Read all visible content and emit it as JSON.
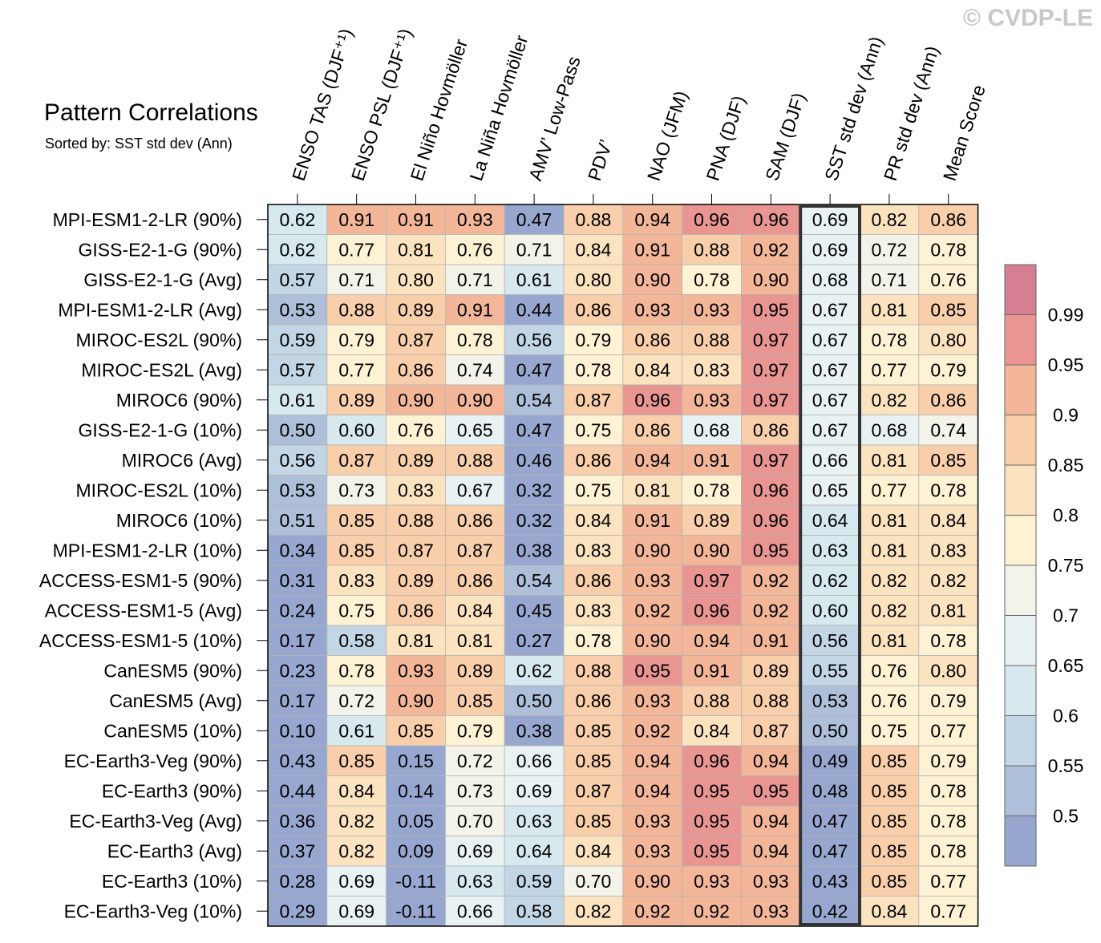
{
  "copyright": "© CVDP-LE",
  "chart_data": {
    "type": "heatmap",
    "title": "Pattern Correlations",
    "subtitle": "Sorted by: SST std dev (Ann)",
    "highlighted_column": "SST std dev (Ann)",
    "columns": [
      "ENSO TAS (DJF⁺¹)",
      "ENSO PSL (DJF⁺¹)",
      "El Niño Hovmöller",
      "La Niña Hovmöller",
      "AMV’ Low-Pass",
      "PDV’",
      "NAO (JFM)",
      "PNA (DJF)",
      "SAM (DJF)",
      "SST std dev (Ann)",
      "PR std dev (Ann)",
      "Mean Score"
    ],
    "rows": [
      "MPI-ESM1-2-LR (90%)",
      "GISS-E2-1-G (90%)",
      "GISS-E2-1-G (Avg)",
      "MPI-ESM1-2-LR (Avg)",
      "MIROC-ES2L (90%)",
      "MIROC-ES2L (Avg)",
      "MIROC6 (90%)",
      "GISS-E2-1-G (10%)",
      "MIROC6 (Avg)",
      "MIROC-ES2L (10%)",
      "MIROC6 (10%)",
      "MPI-ESM1-2-LR (10%)",
      "ACCESS-ESM1-5 (90%)",
      "ACCESS-ESM1-5 (Avg)",
      "ACCESS-ESM1-5 (10%)",
      "CanESM5 (90%)",
      "CanESM5 (Avg)",
      "CanESM5 (10%)",
      "EC-Earth3-Veg (90%)",
      "EC-Earth3 (90%)",
      "EC-Earth3-Veg (Avg)",
      "EC-Earth3 (Avg)",
      "EC-Earth3 (10%)",
      "EC-Earth3-Veg (10%)"
    ],
    "values": [
      [
        "0.62",
        "0.91",
        "0.91",
        "0.93",
        "0.47",
        "0.88",
        "0.94",
        "0.96",
        "0.96",
        "0.69",
        "0.82",
        "0.86"
      ],
      [
        "0.62",
        "0.77",
        "0.81",
        "0.76",
        "0.71",
        "0.84",
        "0.91",
        "0.88",
        "0.92",
        "0.69",
        "0.72",
        "0.78"
      ],
      [
        "0.57",
        "0.71",
        "0.80",
        "0.71",
        "0.61",
        "0.80",
        "0.90",
        "0.78",
        "0.90",
        "0.68",
        "0.71",
        "0.76"
      ],
      [
        "0.53",
        "0.88",
        "0.89",
        "0.91",
        "0.44",
        "0.86",
        "0.93",
        "0.93",
        "0.95",
        "0.67",
        "0.81",
        "0.85"
      ],
      [
        "0.59",
        "0.79",
        "0.87",
        "0.78",
        "0.56",
        "0.79",
        "0.86",
        "0.88",
        "0.97",
        "0.67",
        "0.78",
        "0.80"
      ],
      [
        "0.57",
        "0.77",
        "0.86",
        "0.74",
        "0.47",
        "0.78",
        "0.84",
        "0.83",
        "0.97",
        "0.67",
        "0.77",
        "0.79"
      ],
      [
        "0.61",
        "0.89",
        "0.90",
        "0.90",
        "0.54",
        "0.87",
        "0.96",
        "0.93",
        "0.97",
        "0.67",
        "0.82",
        "0.86"
      ],
      [
        "0.50",
        "0.60",
        "0.76",
        "0.65",
        "0.47",
        "0.75",
        "0.86",
        "0.68",
        "0.86",
        "0.67",
        "0.68",
        "0.74"
      ],
      [
        "0.56",
        "0.87",
        "0.89",
        "0.88",
        "0.46",
        "0.86",
        "0.94",
        "0.91",
        "0.97",
        "0.66",
        "0.81",
        "0.85"
      ],
      [
        "0.53",
        "0.73",
        "0.83",
        "0.67",
        "0.32",
        "0.75",
        "0.81",
        "0.78",
        "0.96",
        "0.65",
        "0.77",
        "0.78"
      ],
      [
        "0.51",
        "0.85",
        "0.88",
        "0.86",
        "0.32",
        "0.84",
        "0.91",
        "0.89",
        "0.96",
        "0.64",
        "0.81",
        "0.84"
      ],
      [
        "0.34",
        "0.85",
        "0.87",
        "0.87",
        "0.38",
        "0.83",
        "0.90",
        "0.90",
        "0.95",
        "0.63",
        "0.81",
        "0.83"
      ],
      [
        "0.31",
        "0.83",
        "0.89",
        "0.86",
        "0.54",
        "0.86",
        "0.93",
        "0.97",
        "0.92",
        "0.62",
        "0.82",
        "0.82"
      ],
      [
        "0.24",
        "0.75",
        "0.86",
        "0.84",
        "0.45",
        "0.83",
        "0.92",
        "0.96",
        "0.92",
        "0.60",
        "0.82",
        "0.81"
      ],
      [
        "0.17",
        "0.58",
        "0.81",
        "0.81",
        "0.27",
        "0.78",
        "0.90",
        "0.94",
        "0.91",
        "0.56",
        "0.81",
        "0.78"
      ],
      [
        "0.23",
        "0.78",
        "0.93",
        "0.89",
        "0.62",
        "0.88",
        "0.95",
        "0.91",
        "0.89",
        "0.55",
        "0.76",
        "0.80"
      ],
      [
        "0.17",
        "0.72",
        "0.90",
        "0.85",
        "0.50",
        "0.86",
        "0.93",
        "0.88",
        "0.88",
        "0.53",
        "0.76",
        "0.79"
      ],
      [
        "0.10",
        "0.61",
        "0.85",
        "0.79",
        "0.38",
        "0.85",
        "0.92",
        "0.84",
        "0.87",
        "0.50",
        "0.75",
        "0.77"
      ],
      [
        "0.43",
        "0.85",
        "0.15",
        "0.72",
        "0.66",
        "0.85",
        "0.94",
        "0.96",
        "0.94",
        "0.49",
        "0.85",
        "0.79"
      ],
      [
        "0.44",
        "0.84",
        "0.14",
        "0.73",
        "0.69",
        "0.87",
        "0.94",
        "0.95",
        "0.95",
        "0.48",
        "0.85",
        "0.78"
      ],
      [
        "0.36",
        "0.82",
        "0.05",
        "0.70",
        "0.63",
        "0.85",
        "0.93",
        "0.95",
        "0.94",
        "0.47",
        "0.85",
        "0.78"
      ],
      [
        "0.37",
        "0.82",
        "0.09",
        "0.69",
        "0.64",
        "0.84",
        "0.93",
        "0.95",
        "0.94",
        "0.47",
        "0.85",
        "0.78"
      ],
      [
        "0.28",
        "0.69",
        "-0.11",
        "0.63",
        "0.59",
        "0.70",
        "0.90",
        "0.93",
        "0.93",
        "0.43",
        "0.85",
        "0.77"
      ],
      [
        "0.29",
        "0.69",
        "-0.11",
        "0.66",
        "0.58",
        "0.82",
        "0.92",
        "0.92",
        "0.93",
        "0.42",
        "0.84",
        "0.77"
      ]
    ],
    "colorbar": {
      "levels": [
        0.5,
        0.55,
        0.6,
        0.65,
        0.7,
        0.75,
        0.8,
        0.85,
        0.9,
        0.95,
        0.99
      ],
      "tick_labels": [
        "0.5",
        "0.55",
        "0.6",
        "0.65",
        "0.7",
        "0.75",
        "0.8",
        "0.85",
        "0.9",
        "0.95",
        "0.99"
      ],
      "colors": [
        "#98a7cf",
        "#aebfd9",
        "#c3d6e6",
        "#d7e8ee",
        "#e8f2f3",
        "#f3f3ea",
        "#fdf2d4",
        "#fce3c0",
        "#f8cfaa",
        "#f3b699",
        "#e99693",
        "#d67f92"
      ]
    }
  }
}
